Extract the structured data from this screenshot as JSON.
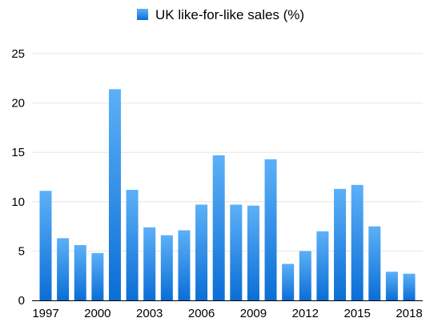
{
  "chart_data": {
    "type": "bar",
    "title": "",
    "xlabel": "",
    "ylabel": "",
    "legend": {
      "position": "top-center",
      "entries": [
        "UK like-for-like sales (%)"
      ]
    },
    "categories": [
      "1997",
      "1998",
      "1999",
      "2000",
      "2001",
      "2002",
      "2003",
      "2004",
      "2005",
      "2006",
      "2007",
      "2008",
      "2009",
      "2010",
      "2011",
      "2012",
      "2013",
      "2014",
      "2015",
      "2016",
      "2017",
      "2018"
    ],
    "x_tick_labels": [
      "1997",
      "2000",
      "2003",
      "2006",
      "2009",
      "2012",
      "2015",
      "2018"
    ],
    "y_ticks": [
      0,
      5,
      10,
      15,
      20,
      25
    ],
    "ylim": [
      0,
      25
    ],
    "grid": true,
    "series": [
      {
        "name": "UK like-for-like sales (%)",
        "color": "#2b8ef0",
        "values": [
          11.1,
          6.3,
          5.6,
          4.8,
          21.4,
          11.2,
          7.4,
          6.6,
          7.1,
          9.7,
          14.7,
          9.7,
          9.6,
          14.3,
          3.7,
          5.0,
          7.0,
          11.3,
          11.7,
          7.5,
          2.9,
          2.7
        ]
      }
    ]
  }
}
